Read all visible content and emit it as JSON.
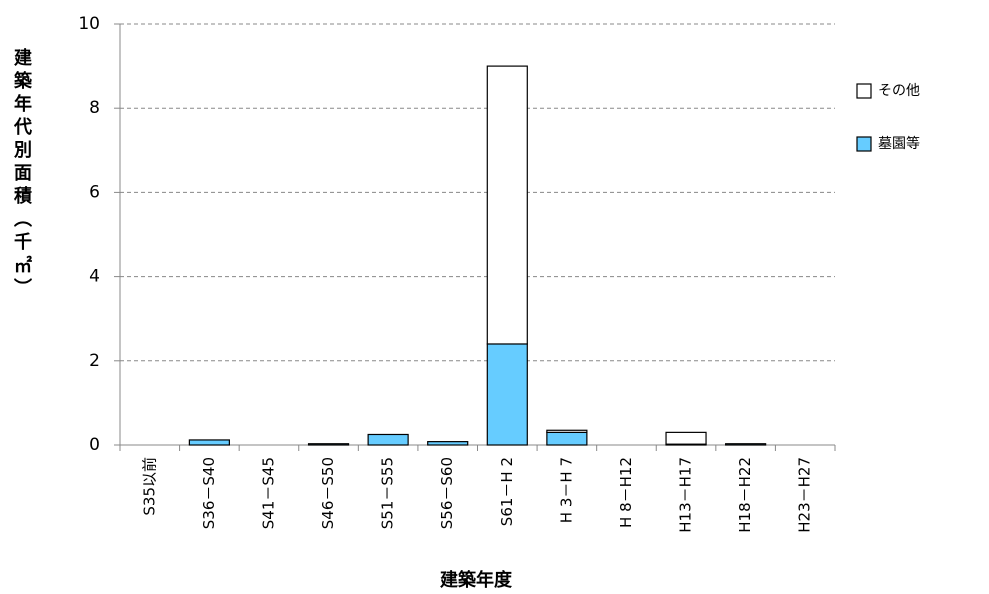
{
  "chart_data": {
    "type": "stacked_bar",
    "y_label": "建築年代別面積（千㎡）",
    "x_label": "建築年度",
    "categories": [
      "S35以前",
      "S36－S40",
      "S41－S45",
      "S46－S50",
      "S51－S55",
      "S56－S60",
      "S61－H 2",
      "H 3－H 7",
      "H 8－H12",
      "H13－H17",
      "H18－H22",
      "H23－H27"
    ],
    "series": [
      {
        "name": "墓園等",
        "color": "#66ccff",
        "values": [
          0,
          0.12,
          0,
          0.03,
          0.25,
          0.08,
          2.4,
          0.3,
          0,
          0.02,
          0.03,
          0
        ]
      },
      {
        "name": "その他",
        "color": "#ffffff",
        "values": [
          0,
          0,
          0,
          0,
          0,
          0,
          6.6,
          0.05,
          0,
          0.28,
          0,
          0
        ]
      }
    ],
    "ylim": [
      0,
      10
    ],
    "yticks": [
      0,
      2,
      4,
      6,
      8,
      10
    ],
    "grid": true,
    "legend": "right"
  }
}
